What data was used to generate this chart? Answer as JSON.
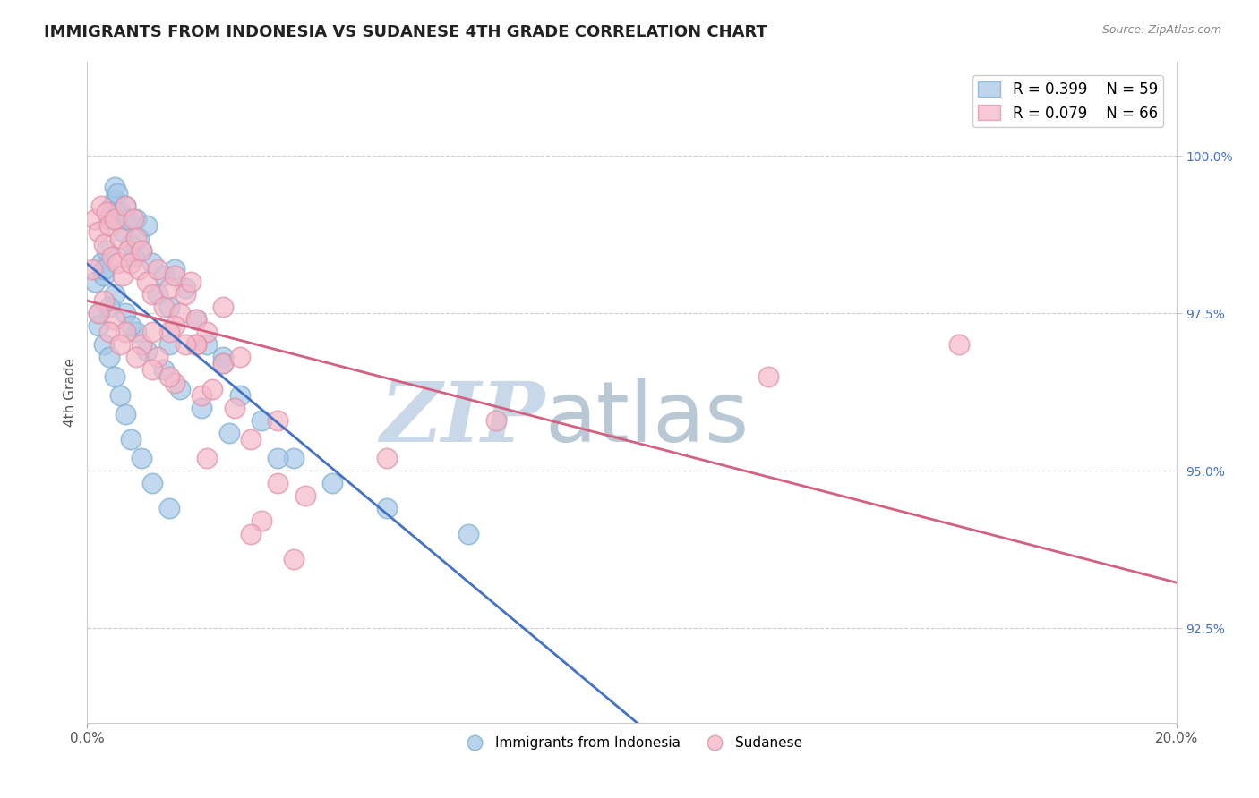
{
  "title": "IMMIGRANTS FROM INDONESIA VS SUDANESE 4TH GRADE CORRELATION CHART",
  "source_text": "Source: ZipAtlas.com",
  "ylabel": "4th Grade",
  "y_ticks": [
    92.5,
    95.0,
    97.5,
    100.0
  ],
  "y_tick_labels": [
    "92.5%",
    "95.0%",
    "97.5%",
    "100.0%"
  ],
  "xlim": [
    0.0,
    20.0
  ],
  "ylim": [
    91.0,
    101.5
  ],
  "legend_r1": "R = 0.399",
  "legend_n1": "N = 59",
  "legend_r2": "R = 0.079",
  "legend_n2": "N = 66",
  "color_blue": "#a8c8e8",
  "color_blue_edge": "#7aaed0",
  "color_pink": "#f4b8c8",
  "color_pink_edge": "#e090a8",
  "color_blue_line": "#4472c4",
  "color_pink_line": "#d46080",
  "watermark_zip": "ZIP",
  "watermark_atlas": "atlas",
  "watermark_color_zip": "#c8d8e8",
  "watermark_color_atlas": "#b8c8d4",
  "blue_x": [
    0.15,
    0.2,
    0.25,
    0.3,
    0.35,
    0.4,
    0.45,
    0.5,
    0.5,
    0.55,
    0.6,
    0.65,
    0.7,
    0.75,
    0.8,
    0.85,
    0.9,
    0.95,
    1.0,
    1.1,
    1.2,
    1.3,
    1.4,
    1.5,
    1.6,
    1.8,
    2.0,
    2.2,
    2.5,
    2.8,
    3.2,
    3.8,
    0.2,
    0.3,
    0.4,
    0.5,
    0.6,
    0.7,
    0.8,
    1.0,
    1.2,
    1.5,
    0.3,
    0.5,
    0.7,
    0.9,
    1.1,
    1.4,
    1.7,
    2.1,
    2.6,
    3.5,
    4.5,
    5.5,
    7.0,
    0.4,
    0.8,
    1.5,
    2.5
  ],
  "blue_y": [
    98.0,
    97.5,
    98.3,
    98.1,
    98.5,
    99.0,
    99.2,
    99.3,
    99.5,
    99.4,
    99.1,
    98.8,
    99.2,
    99.0,
    98.6,
    98.4,
    99.0,
    98.7,
    98.5,
    98.9,
    98.3,
    97.8,
    98.1,
    97.6,
    98.2,
    97.9,
    97.4,
    97.0,
    96.8,
    96.2,
    95.8,
    95.2,
    97.3,
    97.0,
    96.8,
    96.5,
    96.2,
    95.9,
    95.5,
    95.2,
    94.8,
    94.4,
    98.2,
    97.8,
    97.5,
    97.2,
    96.9,
    96.6,
    96.3,
    96.0,
    95.6,
    95.2,
    94.8,
    94.4,
    94.0,
    97.6,
    97.3,
    97.0,
    96.7
  ],
  "pink_x": [
    0.1,
    0.15,
    0.2,
    0.25,
    0.3,
    0.35,
    0.4,
    0.45,
    0.5,
    0.55,
    0.6,
    0.65,
    0.7,
    0.75,
    0.8,
    0.85,
    0.9,
    0.95,
    1.0,
    1.1,
    1.2,
    1.3,
    1.4,
    1.5,
    1.6,
    1.7,
    1.8,
    1.9,
    2.0,
    2.2,
    2.5,
    0.3,
    0.5,
    0.7,
    1.0,
    1.3,
    1.6,
    2.0,
    2.5,
    0.2,
    0.4,
    0.6,
    0.9,
    1.2,
    1.6,
    2.1,
    2.7,
    3.5,
    1.5,
    2.0,
    2.8,
    3.5,
    3.8,
    3.2,
    1.2,
    1.5,
    2.2,
    3.0,
    1.8,
    2.3,
    3.0,
    4.0,
    5.5,
    7.5,
    12.5,
    16.0
  ],
  "pink_y": [
    98.2,
    99.0,
    98.8,
    99.2,
    98.6,
    99.1,
    98.9,
    98.4,
    99.0,
    98.3,
    98.7,
    98.1,
    99.2,
    98.5,
    98.3,
    99.0,
    98.7,
    98.2,
    98.5,
    98.0,
    97.8,
    98.2,
    97.6,
    97.9,
    98.1,
    97.5,
    97.8,
    98.0,
    97.4,
    97.2,
    97.6,
    97.7,
    97.4,
    97.2,
    97.0,
    96.8,
    97.3,
    97.0,
    96.7,
    97.5,
    97.2,
    97.0,
    96.8,
    96.6,
    96.4,
    96.2,
    96.0,
    95.8,
    97.2,
    97.0,
    96.8,
    94.8,
    93.6,
    94.2,
    97.2,
    96.5,
    95.2,
    94.0,
    97.0,
    96.3,
    95.5,
    94.6,
    95.2,
    95.8,
    96.5,
    97.0
  ]
}
